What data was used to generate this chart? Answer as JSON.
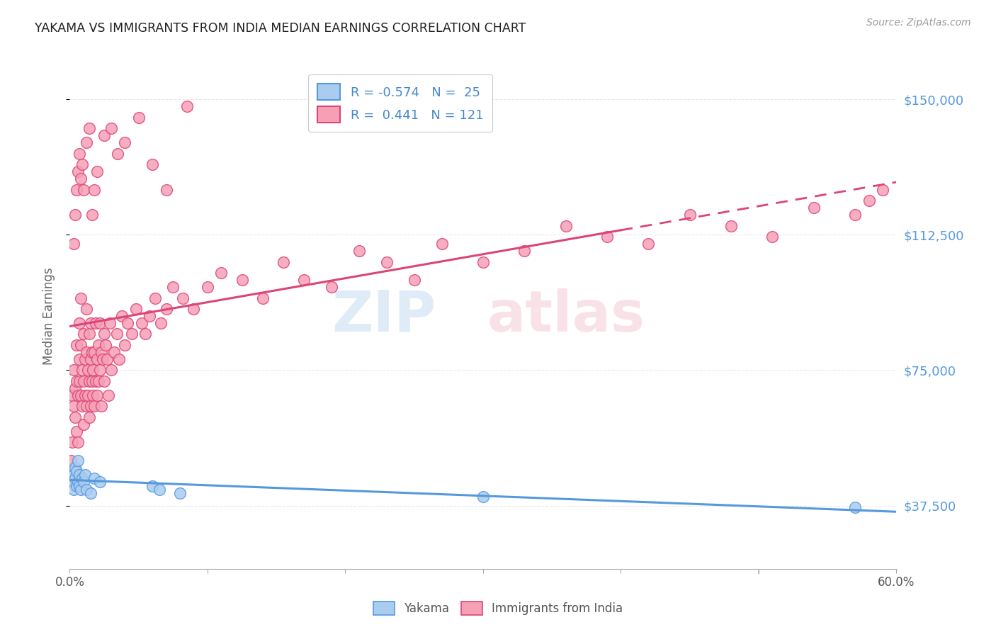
{
  "title": "YAKAMA VS IMMIGRANTS FROM INDIA MEDIAN EARNINGS CORRELATION CHART",
  "source": "Source: ZipAtlas.com",
  "ylabel": "Median Earnings",
  "y_ticks": [
    37500,
    75000,
    112500,
    150000
  ],
  "y_tick_labels": [
    "$37,500",
    "$75,000",
    "$112,500",
    "$150,000"
  ],
  "x_min": 0.0,
  "x_max": 0.6,
  "y_min": 20000,
  "y_max": 160000,
  "yakama_color": "#aaccf0",
  "india_color": "#f5a0b5",
  "line_yakama_color": "#5599dd",
  "line_india_color": "#dd4477",
  "background_color": "#ffffff",
  "grid_color": "#e8e8e8",
  "title_color": "#222222",
  "axis_label_color": "#666666",
  "right_axis_color": "#5599dd",
  "yakama_x": [
    0.001,
    0.002,
    0.003,
    0.003,
    0.004,
    0.004,
    0.005,
    0.005,
    0.006,
    0.006,
    0.007,
    0.007,
    0.008,
    0.009,
    0.01,
    0.011,
    0.012,
    0.015,
    0.018,
    0.022,
    0.06,
    0.065,
    0.08,
    0.3,
    0.57
  ],
  "yakama_y": [
    44000,
    47000,
    46000,
    42000,
    48000,
    45000,
    43000,
    47000,
    50000,
    44000,
    43000,
    46000,
    42000,
    45000,
    44000,
    46000,
    42000,
    41000,
    45000,
    44000,
    43000,
    42000,
    41000,
    40000,
    37000
  ],
  "india_x": [
    0.001,
    0.002,
    0.002,
    0.003,
    0.003,
    0.004,
    0.004,
    0.005,
    0.005,
    0.005,
    0.006,
    0.006,
    0.007,
    0.007,
    0.007,
    0.008,
    0.008,
    0.008,
    0.009,
    0.009,
    0.01,
    0.01,
    0.01,
    0.011,
    0.011,
    0.012,
    0.012,
    0.012,
    0.013,
    0.013,
    0.014,
    0.014,
    0.014,
    0.015,
    0.015,
    0.015,
    0.016,
    0.016,
    0.017,
    0.017,
    0.018,
    0.018,
    0.019,
    0.019,
    0.02,
    0.02,
    0.021,
    0.021,
    0.022,
    0.022,
    0.023,
    0.023,
    0.024,
    0.025,
    0.025,
    0.026,
    0.027,
    0.028,
    0.029,
    0.03,
    0.032,
    0.034,
    0.036,
    0.038,
    0.04,
    0.042,
    0.045,
    0.048,
    0.052,
    0.055,
    0.058,
    0.062,
    0.066,
    0.07,
    0.075,
    0.082,
    0.09,
    0.1,
    0.11,
    0.125,
    0.14,
    0.155,
    0.17,
    0.19,
    0.21,
    0.23,
    0.25,
    0.27,
    0.3,
    0.33,
    0.36,
    0.39,
    0.42,
    0.45,
    0.48,
    0.51,
    0.54,
    0.57,
    0.58,
    0.59,
    0.003,
    0.004,
    0.005,
    0.006,
    0.007,
    0.008,
    0.009,
    0.01,
    0.012,
    0.014,
    0.016,
    0.018,
    0.02,
    0.025,
    0.03,
    0.035,
    0.04,
    0.05,
    0.06,
    0.07,
    0.085
  ],
  "india_y": [
    50000,
    55000,
    68000,
    65000,
    75000,
    70000,
    62000,
    58000,
    72000,
    82000,
    55000,
    68000,
    78000,
    88000,
    72000,
    82000,
    95000,
    68000,
    75000,
    65000,
    72000,
    85000,
    60000,
    68000,
    78000,
    80000,
    92000,
    65000,
    75000,
    68000,
    72000,
    85000,
    62000,
    78000,
    88000,
    65000,
    72000,
    80000,
    75000,
    68000,
    80000,
    65000,
    72000,
    88000,
    78000,
    68000,
    82000,
    72000,
    88000,
    75000,
    80000,
    65000,
    78000,
    85000,
    72000,
    82000,
    78000,
    68000,
    88000,
    75000,
    80000,
    85000,
    78000,
    90000,
    82000,
    88000,
    85000,
    92000,
    88000,
    85000,
    90000,
    95000,
    88000,
    92000,
    98000,
    95000,
    92000,
    98000,
    102000,
    100000,
    95000,
    105000,
    100000,
    98000,
    108000,
    105000,
    100000,
    110000,
    105000,
    108000,
    115000,
    112000,
    110000,
    118000,
    115000,
    112000,
    120000,
    118000,
    122000,
    125000,
    110000,
    118000,
    125000,
    130000,
    135000,
    128000,
    132000,
    125000,
    138000,
    142000,
    118000,
    125000,
    130000,
    140000,
    142000,
    135000,
    138000,
    145000,
    132000,
    125000,
    148000
  ]
}
